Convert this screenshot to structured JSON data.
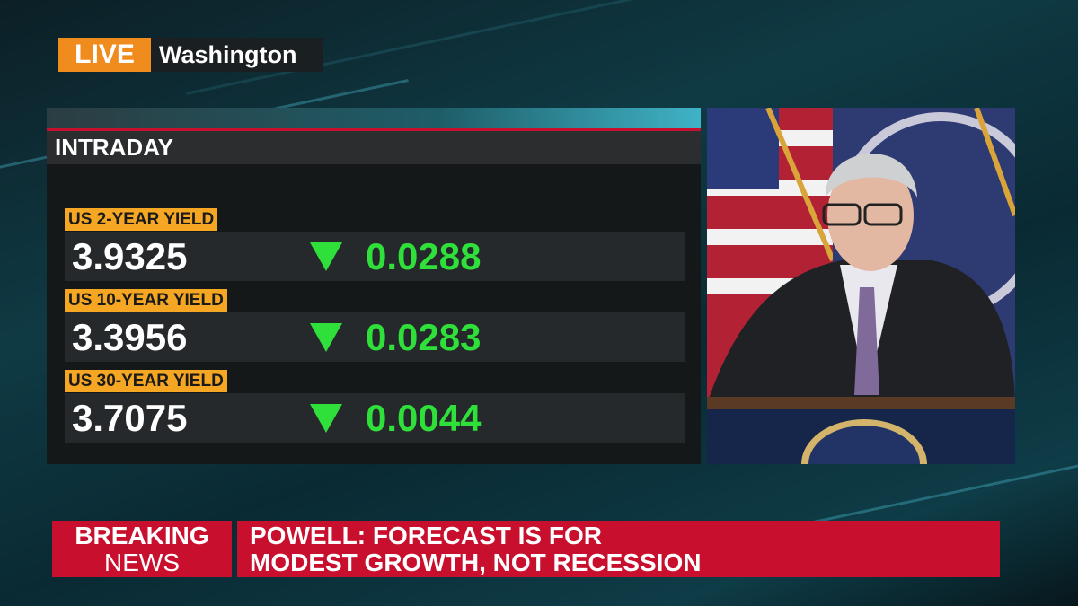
{
  "live_badge": {
    "label": "LIVE",
    "location": "Washington"
  },
  "panel": {
    "title": "INTRADAY",
    "rows": [
      {
        "label": "US 2-YEAR YIELD",
        "value": "3.9325",
        "change": "0.0288"
      },
      {
        "label": "US 10-YEAR YIELD",
        "value": "3.3956",
        "change": "0.0283"
      },
      {
        "label": "US 30-YEAR YIELD",
        "value": "3.7075",
        "change": "0.0044"
      }
    ]
  },
  "ticker": {
    "tag_top": "BREAKING",
    "tag_bottom": "NEWS",
    "headline": [
      "POWELL: FORECAST IS FOR",
      "MODEST GROWTH, NOT RECESSION"
    ]
  }
}
